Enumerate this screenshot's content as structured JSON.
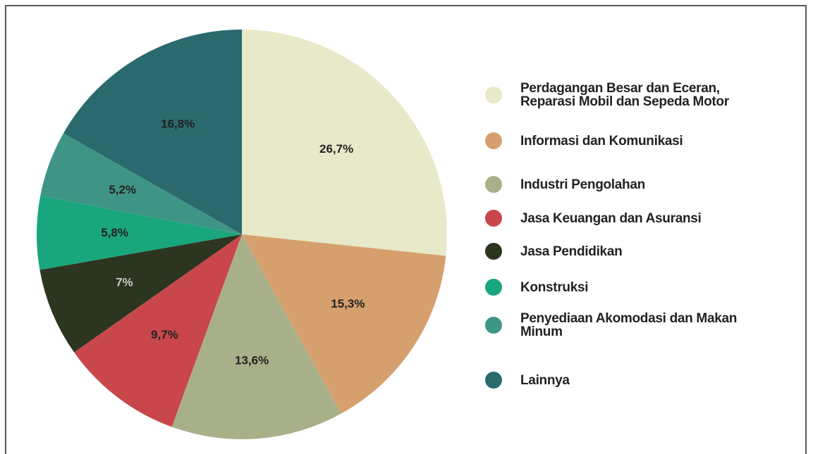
{
  "chart_data": {
    "type": "pie",
    "categories": [
      "Perdagangan Besar dan Eceran, Reparasi Mobil dan Sepeda Motor",
      "Informasi dan Komunikasi",
      "Industri Pengolahan",
      "Jasa Keuangan dan Asuransi",
      "Jasa Pendidikan",
      "Konstruksi",
      "Penyediaan Akomodasi dan Makan Minum",
      "Lainnya"
    ],
    "values": [
      26.7,
      15.3,
      13.6,
      9.7,
      7,
      5.8,
      5.2,
      16.8
    ],
    "value_labels": [
      "26,7%",
      "15,3%",
      "13,6%",
      "9,7%",
      "7%",
      "5,8%",
      "5,2%",
      "16,8%"
    ],
    "colors": [
      "#e8e9c9",
      "#d6a06e",
      "#a8b08a",
      "#c9474b",
      "#2b3520",
      "#1aa67c",
      "#3f9585",
      "#2a6a6e"
    ],
    "legend": "right"
  }
}
